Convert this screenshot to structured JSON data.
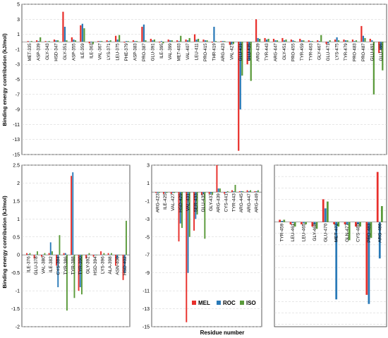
{
  "figure": {
    "ylabel": "Binding energy contribution (kJ/mol)",
    "xlabel": "Residue number",
    "legend": {
      "placement": "bottom-right of center panel"
    }
  },
  "series_colors": {
    "MEL": "#e8302c",
    "ROC": "#2a7ab8",
    "ISO": "#5a9a3a"
  },
  "chart_data": [
    {
      "type": "bar",
      "panel": "top",
      "ylim": [
        -15,
        5
      ],
      "yticks": [
        5,
        3,
        1,
        -1,
        -3,
        -5,
        -7,
        -9,
        -11,
        -13,
        -15
      ],
      "grid": true,
      "categories": [
        "MET-335",
        "ASP-339",
        "GLY-343",
        "HSD-347",
        "GLY-351",
        "ASP-355",
        "ILE-359",
        "ILE-363",
        "VAL-367",
        "LYS-371",
        "LEU-375",
        "PHE-379",
        "ASP-383",
        "PRO-387",
        "GLU-391",
        "ILE-395",
        "VAL-399",
        "MET-403",
        "VAL-407",
        "LEU-411",
        "PRO-415",
        "THR-419",
        "ARG-423",
        "VAL-427",
        "GLU-431",
        "GLU-435",
        "ARG-439",
        "TYR-443",
        "ARG-447",
        "GLY-451",
        "PRO-455",
        "TYR-459",
        "TYR-463",
        "GLY-467",
        "GLU-471",
        "LYS-475",
        "TYR-479",
        "PRO-483",
        "PRO-487",
        "GLU-491",
        "GLU-495"
      ],
      "series": [
        {
          "name": "MEL",
          "values": [
            0.1,
            0.2,
            0.1,
            0.3,
            4.0,
            0.6,
            2.2,
            -0.2,
            0.1,
            0.2,
            0.8,
            -0.1,
            0.2,
            2.0,
            0.4,
            -0.1,
            0.3,
            0.2,
            0.3,
            1.0,
            0.3,
            -0.1,
            0.1,
            -0.4,
            -14.5,
            -3.0,
            3.0,
            0.5,
            0.4,
            0.5,
            0.3,
            0.4,
            0.2,
            0.2,
            -0.3,
            0.3,
            0.3,
            0.3,
            2.1,
            0.4,
            -1.5
          ]
        },
        {
          "name": "ROC",
          "values": [
            0.05,
            0.1,
            0.05,
            0.2,
            2.0,
            0.3,
            2.4,
            -0.1,
            0.1,
            0.1,
            0.3,
            0.1,
            0.1,
            2.3,
            0.2,
            0.1,
            0.2,
            0.1,
            0.2,
            0.3,
            0.2,
            2.0,
            0.1,
            -0.3,
            -9.0,
            -2.5,
            0.5,
            0.3,
            0.2,
            0.2,
            0.2,
            0.2,
            0.1,
            0.1,
            -0.2,
            0.6,
            0.2,
            0.1,
            0.8,
            0.2,
            -1.0
          ]
        },
        {
          "name": "ISO",
          "values": [
            0.1,
            0.6,
            0.1,
            0.2,
            0.2,
            0.2,
            1.8,
            -0.3,
            0.1,
            0.2,
            0.9,
            0.1,
            0.1,
            0.2,
            0.3,
            -0.2,
            0.2,
            0.8,
            0.5,
            0.4,
            0.2,
            0.1,
            0.1,
            -0.3,
            -4.5,
            -5.2,
            0.4,
            0.4,
            0.2,
            0.3,
            0.1,
            0.2,
            0.1,
            0.9,
            0.2,
            0.2,
            0.2,
            0.2,
            0.5,
            -7.0,
            -3.8
          ]
        }
      ]
    },
    {
      "type": "bar",
      "panel": "bottom-left",
      "ylim": [
        -2,
        2.5
      ],
      "yticks": [
        2.5,
        2,
        1.5,
        1,
        0.5,
        0,
        -0.5,
        -1,
        -1.5,
        -2
      ],
      "grid": true,
      "categories": [
        "ILE-376",
        "GLU-378",
        "VAL-380",
        "ILE-382",
        "CYS-384",
        "TYR-386",
        "TYR-388",
        "TYR-390",
        "GLY-392",
        "HSD-394",
        "LYS-396",
        "ALA-398",
        "ASN-400",
        "HSD-402"
      ],
      "series": [
        {
          "name": "MEL",
          "values": [
            0.05,
            -0.1,
            -0.05,
            0.05,
            -0.3,
            0.05,
            2.2,
            -1.0,
            -0.1,
            -0.05,
            0.1,
            0.05,
            -0.3,
            -0.7
          ]
        },
        {
          "name": "ROC",
          "values": [
            0.02,
            0.0,
            0.0,
            0.35,
            -0.9,
            0.05,
            2.3,
            -0.9,
            0.0,
            0.0,
            0.0,
            0.0,
            -0.1,
            -0.5
          ]
        },
        {
          "name": "ISO",
          "values": [
            0.05,
            0.1,
            0.05,
            0.1,
            0.55,
            -1.55,
            -1.2,
            -1.1,
            0.05,
            0.0,
            0.05,
            0.05,
            0.0,
            0.95
          ]
        }
      ]
    },
    {
      "type": "bar",
      "panel": "bottom-center",
      "ylim": [
        -15,
        3
      ],
      "yticks": [
        3,
        1,
        -1,
        -3,
        -5,
        -7,
        -9,
        -11,
        -13,
        -15
      ],
      "grid": true,
      "categories": [
        "ARG-423",
        "ILE-425",
        "VAL-427",
        "HSD-429",
        "VAL-431",
        "SER-433",
        "GLU-435",
        "GLY-437",
        "ARG-439",
        "CYS-441",
        "TYR-443",
        "ARG-445",
        "ARG-447",
        "ARG-449"
      ],
      "series": [
        {
          "name": "MEL",
          "values": [
            -0.1,
            -0.2,
            -0.2,
            -5.5,
            -14.5,
            -4.3,
            -0.3,
            -0.2,
            3.0,
            -0.2,
            0.2,
            0.1,
            0.2,
            0.1
          ]
        },
        {
          "name": "ROC",
          "values": [
            -0.1,
            -0.1,
            -0.1,
            -3.5,
            -9.0,
            -3.0,
            -0.2,
            -0.2,
            0.4,
            -0.1,
            0.1,
            0.1,
            0.1,
            0.1
          ]
        },
        {
          "name": "ISO",
          "values": [
            -0.1,
            -0.1,
            -0.1,
            -4.0,
            -5.0,
            -2.5,
            -5.2,
            -0.3,
            0.4,
            0.1,
            0.8,
            0.1,
            0.2,
            0.2
          ]
        }
      ]
    },
    {
      "type": "bar",
      "panel": "bottom-right",
      "ylim": [
        -4.6,
        2.5
      ],
      "yticks": [],
      "grid": true,
      "categories": [
        "TYR-459",
        "LEU-461",
        "LEU-465",
        "GLY-468",
        "GLU-470",
        "MET-472",
        "GLN-477",
        "CYS-480",
        "PRO-483",
        "ARG-486"
      ],
      "series": [
        {
          "name": "MEL",
          "values": [
            0.1,
            -0.1,
            -0.1,
            -0.2,
            1.0,
            -0.1,
            -0.1,
            -0.2,
            -3.2,
            2.2
          ]
        },
        {
          "name": "ROC",
          "values": [
            0.05,
            -0.05,
            -0.05,
            -0.1,
            0.6,
            -3.4,
            -0.1,
            -0.1,
            -3.6,
            -1.6
          ]
        },
        {
          "name": "ISO",
          "values": [
            0.1,
            -0.2,
            -0.1,
            -0.3,
            0.9,
            -0.2,
            -0.8,
            -0.2,
            -0.7,
            0.7
          ]
        }
      ]
    }
  ]
}
